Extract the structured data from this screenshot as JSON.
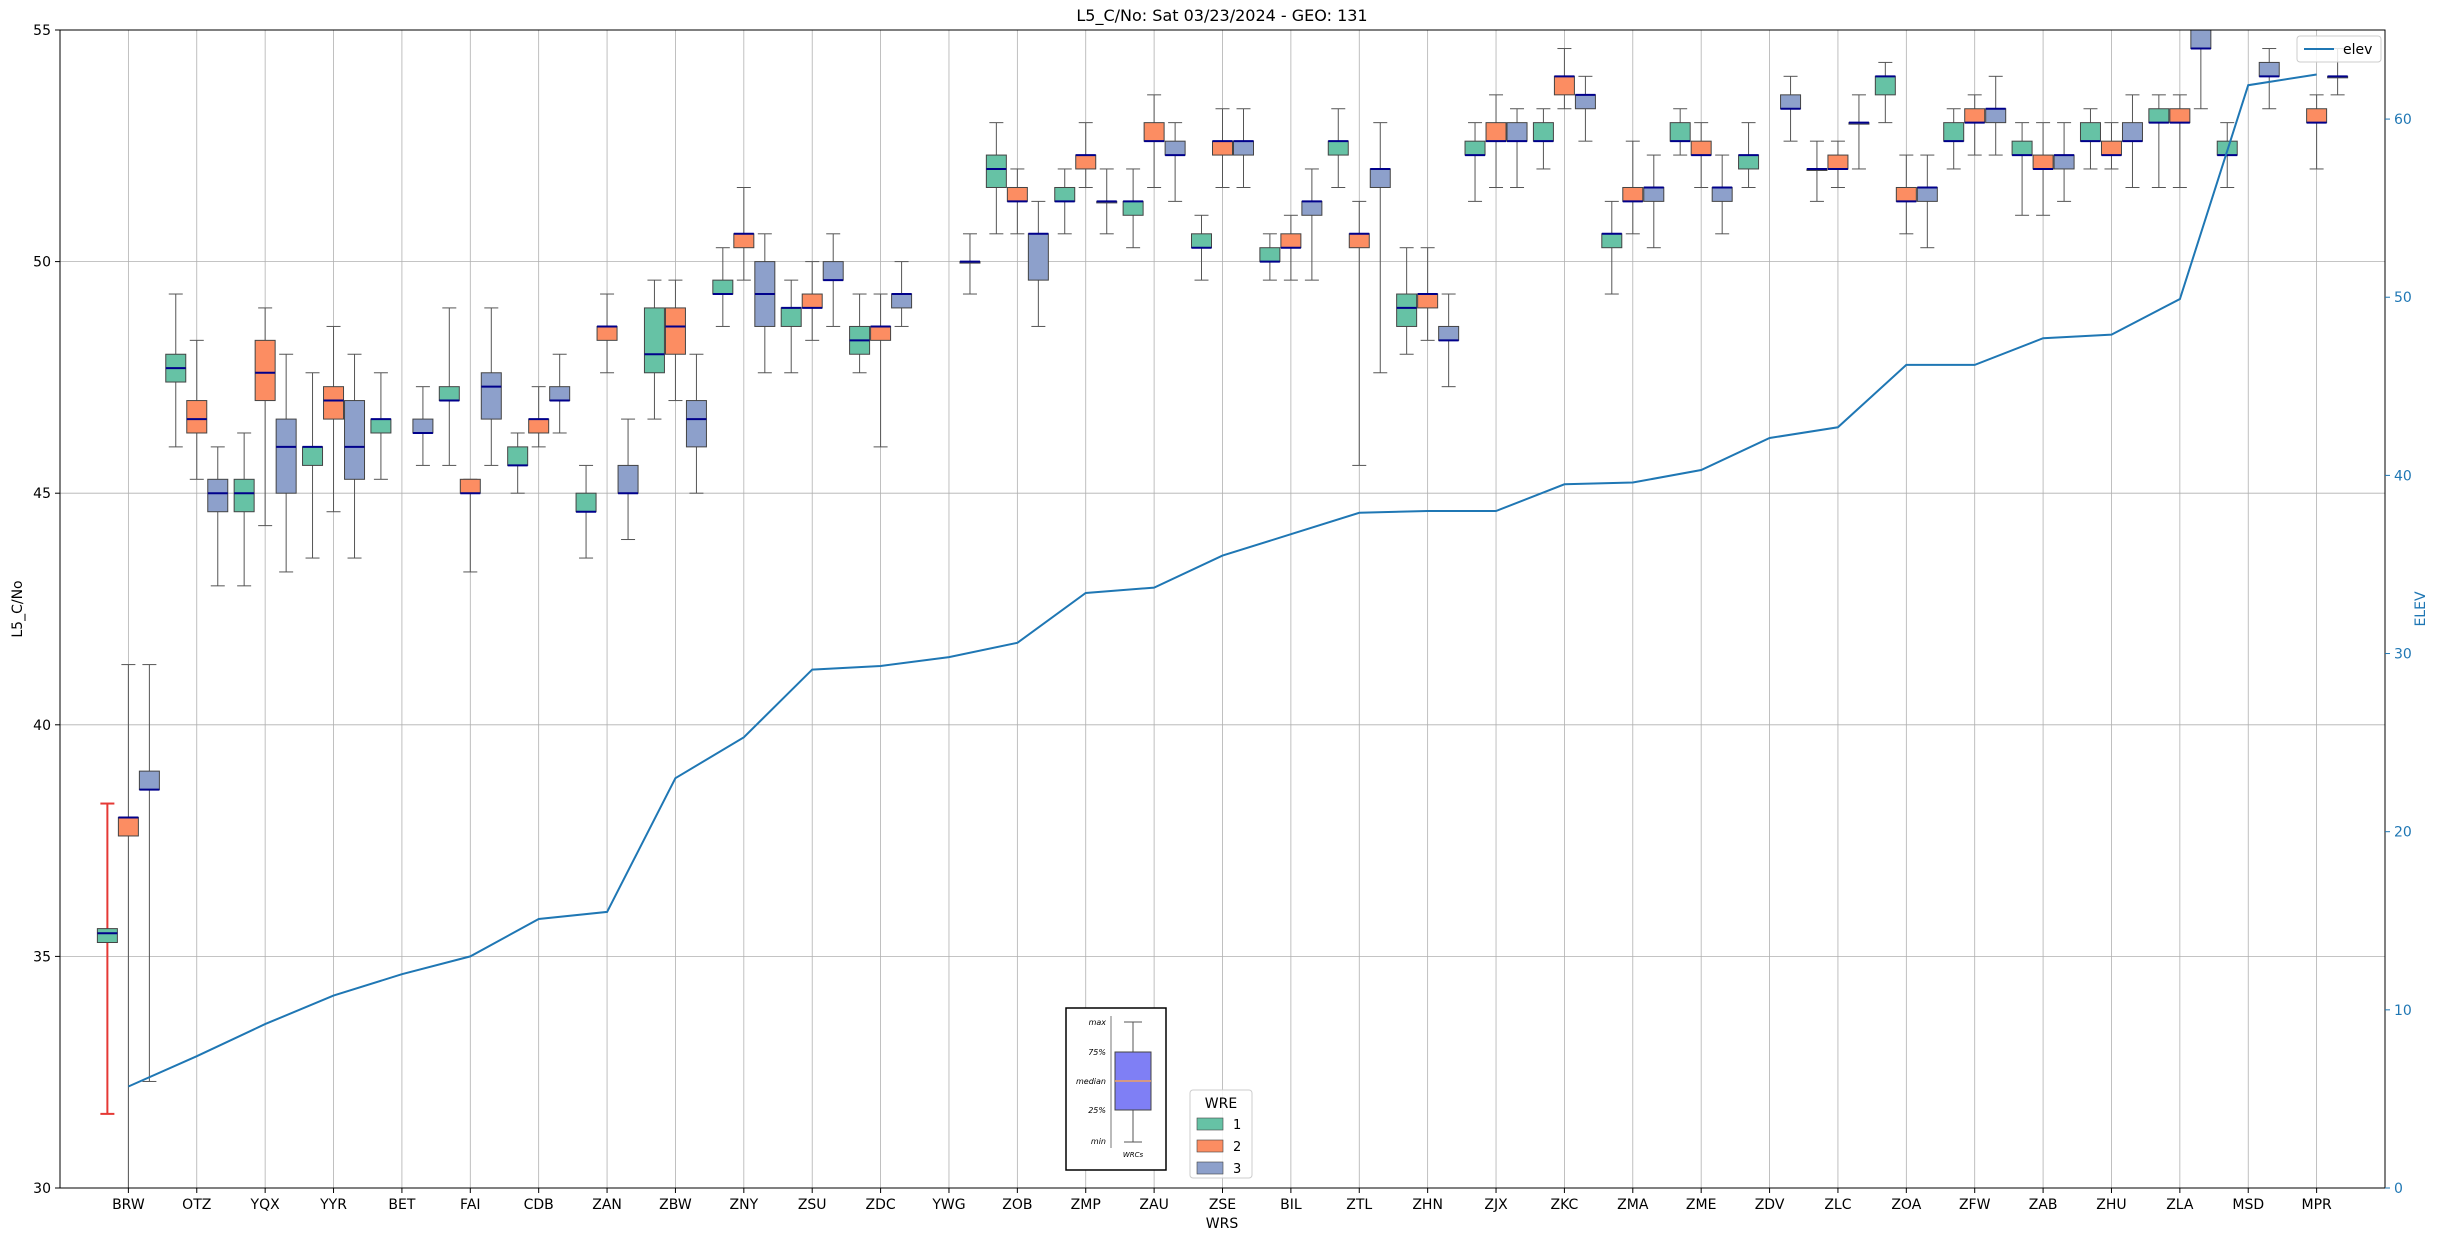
{
  "chart_data": {
    "type": "box",
    "title": "L5_C/No: Sat 03/23/2024 - GEO: 131",
    "xlabel": "WRS",
    "ylabel": "L5_C/No",
    "y2label": "ELEV",
    "ylim": [
      30,
      55
    ],
    "y2lim": [
      0,
      65
    ],
    "yticks": [
      30,
      35,
      40,
      45,
      50,
      55
    ],
    "y2ticks": [
      0,
      10,
      20,
      30,
      40,
      50,
      60
    ],
    "grid": true,
    "categories": [
      "BRW",
      "OTZ",
      "YQX",
      "YYR",
      "BET",
      "FAI",
      "CDB",
      "ZAN",
      "ZBW",
      "ZNY",
      "ZSU",
      "ZDC",
      "YWG",
      "ZOB",
      "ZMP",
      "ZAU",
      "ZSE",
      "BIL",
      "ZTL",
      "ZHN",
      "ZJX",
      "ZKC",
      "ZMA",
      "ZME",
      "ZDV",
      "ZLC",
      "ZOA",
      "ZFW",
      "ZAB",
      "ZHU",
      "ZLA",
      "MSD",
      "MPR"
    ],
    "legend": {
      "title": "WRE",
      "placement": "bottom-center",
      "entries": [
        {
          "label": "1",
          "color": "#66c2a5"
        },
        {
          "label": "2",
          "color": "#fc8d62"
        },
        {
          "label": "3",
          "color": "#8da0cb"
        }
      ]
    },
    "line_legend": {
      "label": "elev",
      "placement": "top-right",
      "color": "#1f77b4"
    },
    "key_inset": {
      "labels": [
        "max",
        "75%",
        "median",
        "25%",
        "min"
      ],
      "caption": "WRCs"
    },
    "elev_series": {
      "name": "elev",
      "color": "#1f77b4",
      "values": [
        5.7,
        7.4,
        9.2,
        10.8,
        12.0,
        13.0,
        15.1,
        15.5,
        23.0,
        25.3,
        29.1,
        29.3,
        29.8,
        30.6,
        33.4,
        33.7,
        35.5,
        36.7,
        37.9,
        38.0,
        38.0,
        39.5,
        39.6,
        40.3,
        42.1,
        42.7,
        46.2,
        46.2,
        47.7,
        47.9,
        49.9,
        61.9,
        62.5
      ]
    },
    "series": [
      {
        "name": "1",
        "color": "#66c2a5",
        "boxes": [
          [
            31.6,
            35.3,
            35.5,
            35.6,
            38.3
          ],
          [
            46.0,
            47.4,
            47.7,
            48.0,
            49.3
          ],
          [
            43.0,
            44.6,
            45.0,
            45.3,
            46.3
          ],
          [
            43.6,
            45.6,
            46.0,
            46.0,
            47.6
          ],
          [
            45.3,
            46.3,
            46.6,
            46.6,
            47.6
          ],
          [
            45.6,
            47.0,
            47.0,
            47.3,
            49.0
          ],
          [
            45.0,
            45.6,
            45.6,
            46.0,
            46.3
          ],
          [
            43.6,
            44.6,
            44.6,
            45.0,
            45.6
          ],
          [
            46.6,
            47.6,
            48.0,
            49.0,
            49.6
          ],
          [
            48.6,
            49.3,
            49.3,
            49.6,
            50.3
          ],
          [
            47.6,
            48.6,
            49.0,
            49.0,
            49.6
          ],
          [
            47.6,
            48.0,
            48.3,
            48.6,
            49.3
          ],
          null,
          [
            50.6,
            51.6,
            52.0,
            52.3,
            53.0
          ],
          [
            50.6,
            51.3,
            51.3,
            51.6,
            52.0
          ],
          [
            50.3,
            51.0,
            51.3,
            51.3,
            52.0
          ],
          [
            49.6,
            50.3,
            50.3,
            50.6,
            51.0
          ],
          [
            49.6,
            50.0,
            50.0,
            50.3,
            50.6
          ],
          [
            51.6,
            52.3,
            52.6,
            52.6,
            53.3
          ],
          [
            48.0,
            48.6,
            49.0,
            49.3,
            50.3
          ],
          [
            51.3,
            52.3,
            52.3,
            52.6,
            53.0
          ],
          [
            52.0,
            52.6,
            52.6,
            53.0,
            53.3
          ],
          [
            49.3,
            50.3,
            50.6,
            50.6,
            51.3
          ],
          [
            52.3,
            52.6,
            52.6,
            53.0,
            53.3
          ],
          [
            51.6,
            52.0,
            52.3,
            52.3,
            53.0
          ],
          [
            51.3,
            52.0,
            52.0,
            52.0,
            52.6
          ],
          [
            53.0,
            53.6,
            54.0,
            54.0,
            54.3
          ],
          [
            52.0,
            52.6,
            52.6,
            53.0,
            53.3
          ],
          [
            51.0,
            52.3,
            52.3,
            52.6,
            53.0
          ],
          [
            52.0,
            52.6,
            52.6,
            53.0,
            53.3
          ],
          [
            51.6,
            53.0,
            53.0,
            53.3,
            53.6
          ],
          [
            51.6,
            52.3,
            52.3,
            52.6,
            53.0
          ],
          null
        ]
      },
      {
        "name": "2",
        "color": "#fc8d62",
        "boxes": [
          [
            30.0,
            37.6,
            38.0,
            38.0,
            41.3
          ],
          [
            45.3,
            46.3,
            46.6,
            47.0,
            48.3
          ],
          [
            44.3,
            47.0,
            47.6,
            48.3,
            49.0
          ],
          [
            44.6,
            46.6,
            47.0,
            47.3,
            48.6
          ],
          null,
          [
            43.3,
            45.0,
            45.0,
            45.3,
            45.3
          ],
          [
            46.0,
            46.3,
            46.6,
            46.6,
            47.3
          ],
          [
            47.6,
            48.3,
            48.6,
            48.6,
            49.3
          ],
          [
            47.0,
            48.0,
            48.6,
            49.0,
            49.6
          ],
          [
            49.6,
            50.3,
            50.6,
            50.6,
            51.6
          ],
          [
            48.3,
            49.0,
            49.0,
            49.3,
            50.0
          ],
          [
            46.0,
            48.3,
            48.6,
            48.6,
            49.3
          ],
          null,
          [
            50.6,
            51.3,
            51.3,
            51.6,
            52.0
          ],
          [
            51.6,
            52.0,
            52.3,
            52.3,
            53.0
          ],
          [
            51.6,
            52.6,
            52.6,
            53.0,
            53.6
          ],
          [
            51.6,
            52.3,
            52.6,
            52.6,
            53.3
          ],
          [
            49.6,
            50.3,
            50.3,
            50.6,
            51.0
          ],
          [
            45.6,
            50.3,
            50.6,
            50.6,
            51.3
          ],
          [
            48.3,
            49.0,
            49.3,
            49.3,
            50.3
          ],
          [
            51.6,
            52.6,
            52.6,
            53.0,
            53.6
          ],
          [
            53.3,
            53.6,
            54.0,
            54.0,
            54.6
          ],
          [
            50.6,
            51.3,
            51.3,
            51.6,
            52.6
          ],
          [
            51.6,
            52.3,
            52.3,
            52.6,
            53.0
          ],
          null,
          [
            51.6,
            52.0,
            52.0,
            52.3,
            52.6
          ],
          [
            50.6,
            51.3,
            51.3,
            51.6,
            52.3
          ],
          [
            52.3,
            53.0,
            53.0,
            53.3,
            53.6
          ],
          [
            51.0,
            52.0,
            52.0,
            52.3,
            53.0
          ],
          [
            52.0,
            52.3,
            52.3,
            52.6,
            53.0
          ],
          [
            51.6,
            53.0,
            53.0,
            53.3,
            53.6
          ],
          null,
          [
            52.0,
            53.0,
            53.0,
            53.3,
            53.6
          ]
        ]
      },
      {
        "name": "3",
        "color": "#8da0cb",
        "boxes": [
          [
            32.3,
            38.6,
            38.6,
            39.0,
            41.3
          ],
          [
            43.0,
            44.6,
            45.0,
            45.3,
            46.0
          ],
          [
            43.3,
            45.0,
            46.0,
            46.6,
            48.0
          ],
          [
            43.6,
            45.3,
            46.0,
            47.0,
            48.0
          ],
          [
            45.6,
            46.3,
            46.3,
            46.6,
            47.3
          ],
          [
            45.6,
            46.6,
            47.3,
            47.6,
            49.0
          ],
          [
            46.3,
            47.0,
            47.0,
            47.3,
            48.0
          ],
          [
            44.0,
            45.0,
            45.0,
            45.6,
            46.6
          ],
          [
            45.0,
            46.0,
            46.6,
            47.0,
            48.0
          ],
          [
            47.6,
            48.6,
            49.3,
            50.0,
            50.6
          ],
          [
            48.6,
            49.6,
            49.6,
            50.0,
            50.6
          ],
          [
            48.6,
            49.0,
            49.3,
            49.3,
            50.0
          ],
          [
            49.3,
            50.0,
            50.0,
            50.0,
            50.6
          ],
          [
            48.6,
            49.6,
            50.6,
            50.6,
            51.3
          ],
          [
            50.6,
            51.3,
            51.3,
            51.3,
            52.0
          ],
          [
            51.3,
            52.3,
            52.3,
            52.6,
            53.0
          ],
          [
            51.6,
            52.3,
            52.6,
            52.6,
            53.3
          ],
          [
            49.6,
            51.0,
            51.3,
            51.3,
            52.0
          ],
          [
            47.6,
            51.6,
            52.0,
            52.0,
            53.0
          ],
          [
            47.3,
            48.3,
            48.3,
            48.6,
            49.3
          ],
          [
            51.6,
            52.6,
            52.6,
            53.0,
            53.3
          ],
          [
            52.6,
            53.3,
            53.6,
            53.6,
            54.0
          ],
          [
            50.3,
            51.3,
            51.6,
            51.6,
            52.3
          ],
          [
            50.6,
            51.3,
            51.6,
            51.6,
            52.3
          ],
          [
            52.6,
            53.3,
            53.3,
            53.6,
            54.0
          ],
          [
            52.0,
            53.0,
            53.0,
            53.0,
            53.6
          ],
          [
            50.3,
            51.3,
            51.6,
            51.6,
            52.3
          ],
          [
            52.3,
            53.0,
            53.3,
            53.3,
            54.0
          ],
          [
            51.3,
            52.0,
            52.3,
            52.3,
            53.0
          ],
          [
            51.6,
            52.6,
            52.6,
            53.0,
            53.6
          ],
          [
            53.3,
            54.6,
            54.6,
            55.0,
            55.0
          ],
          [
            53.3,
            54.0,
            54.0,
            54.3,
            54.6
          ],
          [
            53.6,
            54.0,
            54.0,
            54.0,
            54.6
          ]
        ]
      }
    ]
  }
}
